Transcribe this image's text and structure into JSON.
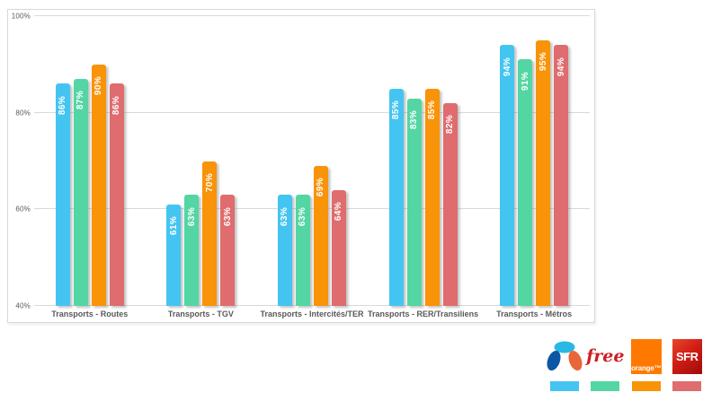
{
  "chart_data": {
    "type": "bar",
    "title": "",
    "categories": [
      "Transports - Routes",
      "Transports - TGV",
      "Transports - Intercités/TER",
      "Transports - RER/Transiliens",
      "Transports - Métros"
    ],
    "series": [
      {
        "id": "bouygues",
        "name": "Bouygues Telecom",
        "color": "#44c4f1",
        "values": [
          86,
          61,
          63,
          85,
          94
        ]
      },
      {
        "id": "free",
        "name": "Free",
        "color": "#53d6a3",
        "values": [
          87,
          63,
          63,
          83,
          91
        ]
      },
      {
        "id": "orange",
        "name": "Orange",
        "color": "#f99308",
        "values": [
          90,
          70,
          69,
          85,
          95
        ]
      },
      {
        "id": "sfr",
        "name": "SFR",
        "color": "#df6c6e",
        "values": [
          86,
          63,
          64,
          82,
          94
        ]
      }
    ],
    "value_suffix": "%",
    "ylim": [
      40,
      100
    ],
    "yticks": [
      100,
      80,
      60,
      40
    ],
    "grid": true,
    "legend_position": "bottom-right"
  },
  "legend": {
    "operators": [
      {
        "id": "bouygues",
        "name": "Bouygues Telecom",
        "swatch_color": "#44c4f1"
      },
      {
        "id": "free",
        "name": "Free",
        "logo_text": "free",
        "logo_color": "#cd1e25",
        "swatch_color": "#53d6a3"
      },
      {
        "id": "orange",
        "name": "Orange",
        "logo_text": "orange™",
        "logo_bg": "#ff7900",
        "swatch_color": "#f99308"
      },
      {
        "id": "sfr",
        "name": "SFR",
        "logo_text": "SFR",
        "logo_bg": "#d21e14",
        "swatch_color": "#df6c6e"
      }
    ]
  }
}
